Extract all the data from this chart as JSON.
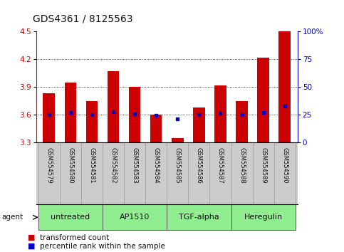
{
  "title": "GDS4361 / 8125563",
  "samples": [
    "GSM554579",
    "GSM554580",
    "GSM554581",
    "GSM554582",
    "GSM554583",
    "GSM554584",
    "GSM554585",
    "GSM554586",
    "GSM554587",
    "GSM554588",
    "GSM554589",
    "GSM554590"
  ],
  "red_values": [
    3.83,
    3.95,
    3.75,
    4.07,
    3.9,
    3.6,
    3.35,
    3.68,
    3.92,
    3.75,
    4.22,
    4.5
  ],
  "blue_values": [
    3.6,
    3.625,
    3.6,
    3.635,
    3.61,
    3.595,
    3.555,
    3.6,
    3.615,
    3.6,
    3.625,
    3.695
  ],
  "ymin": 3.3,
  "ymax": 4.5,
  "yticks_left": [
    3.3,
    3.6,
    3.9,
    4.2,
    4.5
  ],
  "pct_ticks": [
    0,
    25,
    50,
    75,
    100
  ],
  "grid_lines": [
    3.6,
    3.9,
    4.2
  ],
  "agents": [
    {
      "label": "untreated",
      "start": 0,
      "end": 3
    },
    {
      "label": "AP1510",
      "start": 3,
      "end": 6
    },
    {
      "label": "TGF-alpha",
      "start": 6,
      "end": 9
    },
    {
      "label": "Heregulin",
      "start": 9,
      "end": 12
    }
  ],
  "agent_color": "#90EE90",
  "bar_color": "#CC0000",
  "blue_color": "#0000CC",
  "bar_width": 0.55,
  "title_fontsize": 10,
  "tick_fontsize": 7.5,
  "sample_fontsize": 6,
  "agent_fontsize": 8,
  "legend_fontsize": 7.5,
  "left_tick_color": "#CC0000",
  "right_tick_color": "#0000CC",
  "bg_color": "#ffffff",
  "sample_bg_color": "#cccccc",
  "plot_bg_color": "#ffffff"
}
